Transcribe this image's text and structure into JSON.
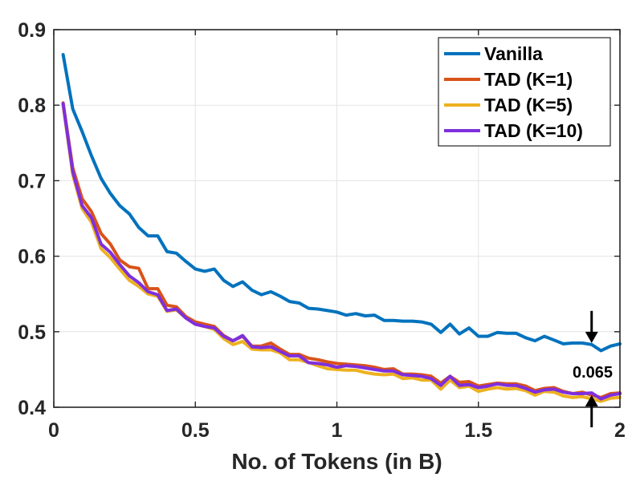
{
  "chart_data": {
    "type": "line",
    "title": "",
    "xlabel": "No. of Tokens (in B)",
    "ylabel": "",
    "xlim": [
      0,
      2
    ],
    "ylim": [
      0.4,
      0.9
    ],
    "xticks": [
      0,
      0.5,
      1,
      1.5,
      2
    ],
    "xtick_labels": [
      "0",
      "0.5",
      "1",
      "1.5",
      "2"
    ],
    "yticks": [
      0.4,
      0.5,
      0.6,
      0.7,
      0.8,
      0.9
    ],
    "ytick_labels": [
      "0.4",
      "0.5",
      "0.6",
      "0.7",
      "0.8",
      "0.9"
    ],
    "grid": true,
    "legend_position": "top-right",
    "x": [
      0.033,
      0.067,
      0.1,
      0.133,
      0.167,
      0.2,
      0.233,
      0.267,
      0.3,
      0.333,
      0.367,
      0.4,
      0.433,
      0.467,
      0.5,
      0.533,
      0.567,
      0.6,
      0.633,
      0.667,
      0.7,
      0.733,
      0.767,
      0.8,
      0.833,
      0.867,
      0.9,
      0.933,
      0.967,
      1.0,
      1.033,
      1.067,
      1.1,
      1.133,
      1.167,
      1.2,
      1.233,
      1.267,
      1.3,
      1.333,
      1.367,
      1.4,
      1.433,
      1.467,
      1.5,
      1.533,
      1.567,
      1.6,
      1.633,
      1.667,
      1.7,
      1.733,
      1.767,
      1.8,
      1.833,
      1.867,
      1.9,
      1.933,
      1.967,
      2.0
    ],
    "series": [
      {
        "name": "Vanilla",
        "color": "#0072BD",
        "values": [
          0.867,
          0.795,
          0.765,
          0.733,
          0.703,
          0.683,
          0.667,
          0.656,
          0.638,
          0.627,
          0.627,
          0.606,
          0.604,
          0.593,
          0.583,
          0.58,
          0.583,
          0.568,
          0.56,
          0.566,
          0.555,
          0.549,
          0.553,
          0.547,
          0.54,
          0.538,
          0.531,
          0.53,
          0.528,
          0.526,
          0.522,
          0.524,
          0.521,
          0.522,
          0.515,
          0.515,
          0.514,
          0.514,
          0.513,
          0.51,
          0.499,
          0.51,
          0.497,
          0.505,
          0.494,
          0.494,
          0.499,
          0.498,
          0.498,
          0.492,
          0.488,
          0.494,
          0.489,
          0.484,
          0.485,
          0.485,
          0.483,
          0.475,
          0.481,
          0.484
        ]
      },
      {
        "name": "TAD (K=1)",
        "color": "#D95319",
        "values": [
          0.803,
          0.717,
          0.676,
          0.659,
          0.63,
          0.616,
          0.595,
          0.586,
          0.584,
          0.557,
          0.557,
          0.535,
          0.533,
          0.52,
          0.513,
          0.51,
          0.507,
          0.495,
          0.488,
          0.494,
          0.481,
          0.481,
          0.485,
          0.477,
          0.47,
          0.47,
          0.465,
          0.463,
          0.46,
          0.458,
          0.457,
          0.456,
          0.455,
          0.453,
          0.45,
          0.451,
          0.444,
          0.444,
          0.443,
          0.441,
          0.432,
          0.441,
          0.433,
          0.434,
          0.428,
          0.43,
          0.432,
          0.431,
          0.431,
          0.428,
          0.422,
          0.425,
          0.426,
          0.421,
          0.418,
          0.42,
          0.416,
          0.413,
          0.418,
          0.419
        ]
      },
      {
        "name": "TAD (K=5)",
        "color": "#EDB120",
        "values": [
          0.8,
          0.708,
          0.663,
          0.645,
          0.61,
          0.598,
          0.583,
          0.568,
          0.56,
          0.55,
          0.547,
          0.527,
          0.529,
          0.518,
          0.51,
          0.507,
          0.503,
          0.491,
          0.483,
          0.487,
          0.477,
          0.476,
          0.476,
          0.472,
          0.463,
          0.463,
          0.459,
          0.455,
          0.451,
          0.45,
          0.449,
          0.449,
          0.446,
          0.444,
          0.443,
          0.444,
          0.438,
          0.439,
          0.436,
          0.436,
          0.424,
          0.436,
          0.426,
          0.428,
          0.421,
          0.424,
          0.426,
          0.424,
          0.425,
          0.422,
          0.416,
          0.421,
          0.42,
          0.415,
          0.413,
          0.414,
          0.411,
          0.408,
          0.412,
          0.413
        ]
      },
      {
        "name": "TAD (K=10)",
        "color": "#7E2FDE",
        "values": [
          0.802,
          0.712,
          0.667,
          0.651,
          0.616,
          0.605,
          0.589,
          0.574,
          0.565,
          0.553,
          0.549,
          0.528,
          0.53,
          0.518,
          0.51,
          0.507,
          0.505,
          0.494,
          0.488,
          0.495,
          0.48,
          0.479,
          0.48,
          0.474,
          0.468,
          0.468,
          0.459,
          0.458,
          0.456,
          0.453,
          0.455,
          0.454,
          0.452,
          0.45,
          0.448,
          0.448,
          0.443,
          0.442,
          0.441,
          0.438,
          0.429,
          0.441,
          0.429,
          0.43,
          0.426,
          0.428,
          0.431,
          0.429,
          0.429,
          0.425,
          0.42,
          0.423,
          0.424,
          0.42,
          0.418,
          0.418,
          0.419,
          0.411,
          0.416,
          0.418
        ]
      }
    ],
    "annotations": [
      {
        "text": "0.065",
        "x": 1.9,
        "gap_top": 0.483,
        "gap_bottom": 0.418
      }
    ]
  }
}
